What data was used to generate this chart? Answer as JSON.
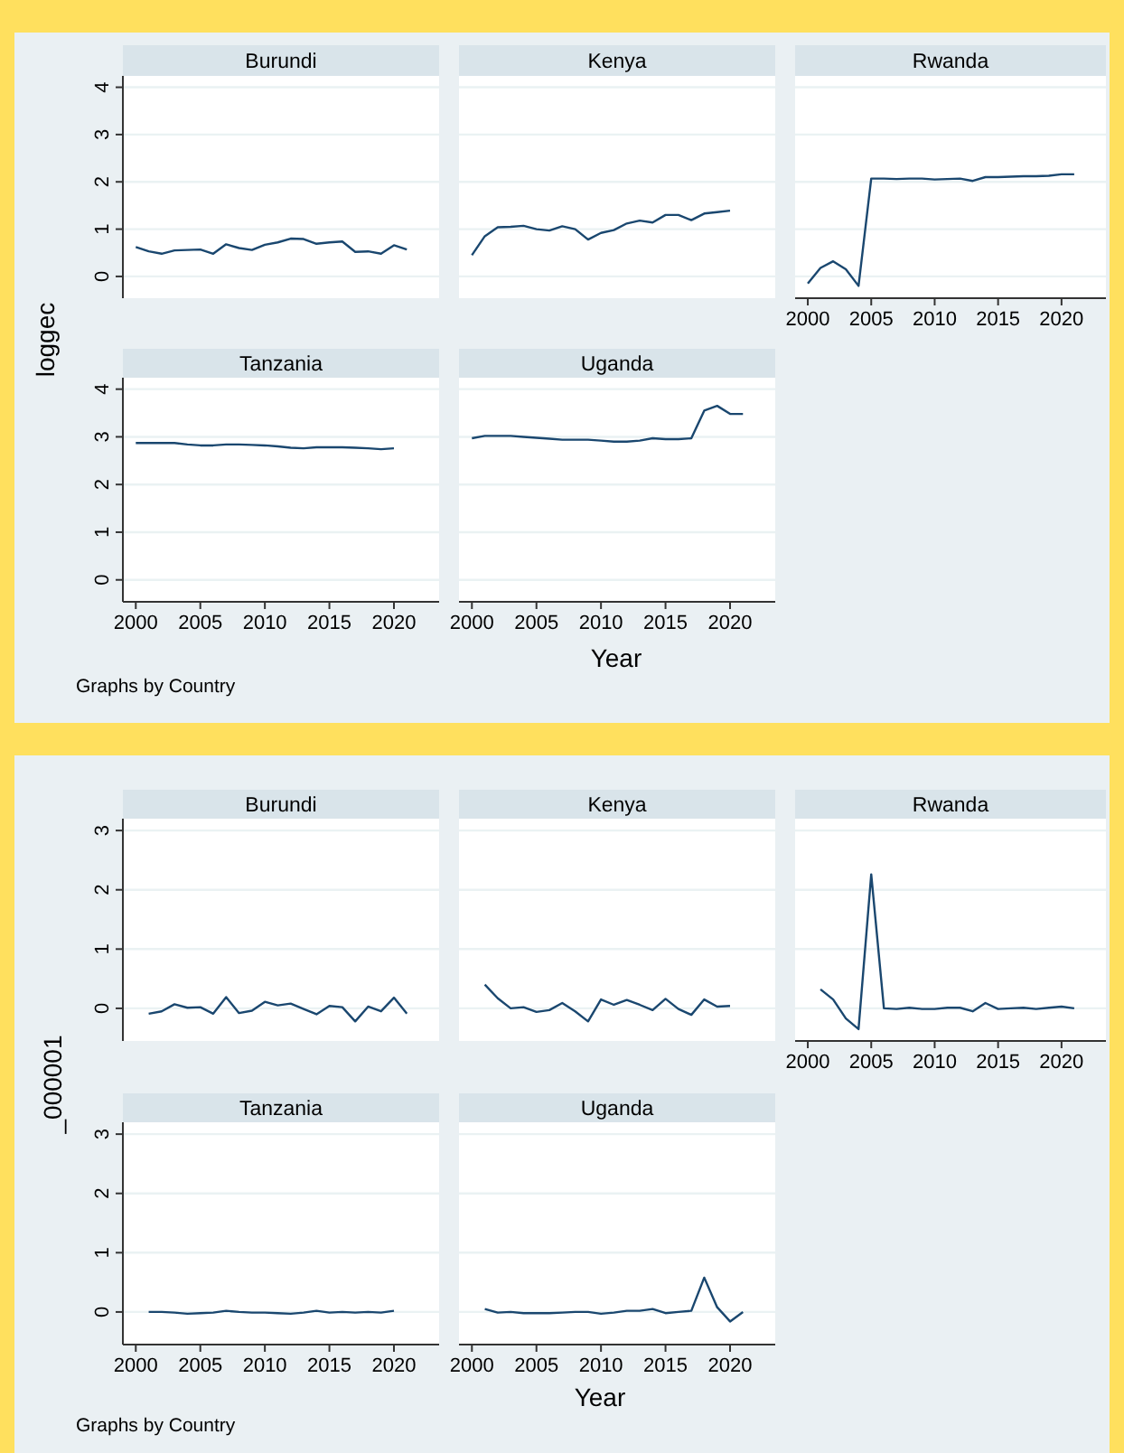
{
  "chart_data": [
    {
      "type": "line",
      "title": "Burundi",
      "ylabel": "loggec",
      "x": [
        2000,
        2001,
        2002,
        2003,
        2004,
        2005,
        2006,
        2007,
        2008,
        2009,
        2010,
        2011,
        2012,
        2013,
        2014,
        2015,
        2016,
        2017,
        2018,
        2019,
        2020,
        2021
      ],
      "series": [
        {
          "color": "#1a476f",
          "values": [
            0.62,
            0.53,
            0.48,
            0.55,
            0.56,
            0.57,
            0.48,
            0.68,
            0.6,
            0.56,
            0.67,
            0.72,
            0.8,
            0.79,
            0.69,
            0.72,
            0.74,
            0.52,
            0.53,
            0.48,
            0.66,
            0.57
          ]
        }
      ],
      "xlim": [
        1999,
        2023.5
      ],
      "ylim": [
        -0.46,
        4.24
      ],
      "yticks": [
        0,
        1,
        2,
        3,
        4
      ],
      "grid": "y",
      "tick_labels": "y"
    },
    {
      "type": "line",
      "title": "Kenya",
      "x": [
        2000,
        2001,
        2002,
        2003,
        2004,
        2005,
        2006,
        2007,
        2008,
        2009,
        2010,
        2011,
        2012,
        2013,
        2014,
        2015,
        2016,
        2017,
        2018,
        2019,
        2020
      ],
      "series": [
        {
          "color": "#1a476f",
          "values": [
            0.45,
            0.85,
            1.04,
            1.05,
            1.07,
            1.0,
            0.97,
            1.06,
            1.0,
            0.78,
            0.92,
            0.98,
            1.12,
            1.18,
            1.14,
            1.3,
            1.3,
            1.19,
            1.33,
            1.36,
            1.39
          ]
        }
      ],
      "xlim": [
        1999,
        2023.5
      ],
      "ylim": [
        -0.46,
        4.24
      ],
      "yticks": [
        0,
        1,
        2,
        3,
        4
      ],
      "grid": "y",
      "tick_labels": false
    },
    {
      "type": "line",
      "title": "Rwanda",
      "x": [
        2000,
        2001,
        2002,
        2003,
        2004,
        2005,
        2006,
        2007,
        2008,
        2009,
        2010,
        2011,
        2012,
        2013,
        2014,
        2015,
        2016,
        2017,
        2018,
        2019,
        2020,
        2021
      ],
      "series": [
        {
          "color": "#1a476f",
          "values": [
            -0.15,
            0.18,
            0.32,
            0.15,
            -0.2,
            2.07,
            2.07,
            2.06,
            2.07,
            2.07,
            2.05,
            2.06,
            2.07,
            2.02,
            2.1,
            2.1,
            2.11,
            2.12,
            2.12,
            2.13,
            2.16,
            2.16
          ]
        }
      ],
      "xlim": [
        1999,
        2023.5
      ],
      "ylim": [
        -0.46,
        4.24
      ],
      "xticks": [
        2000,
        2005,
        2010,
        2015,
        2020
      ],
      "yticks": [
        0,
        1,
        2,
        3,
        4
      ],
      "grid": "y",
      "tick_labels": "x"
    },
    {
      "type": "line",
      "title": "Tanzania",
      "annotations": [
        "Graphs by Country"
      ],
      "x": [
        2000,
        2001,
        2002,
        2003,
        2004,
        2005,
        2006,
        2007,
        2008,
        2009,
        2010,
        2011,
        2012,
        2013,
        2014,
        2015,
        2016,
        2017,
        2018,
        2019,
        2020
      ],
      "series": [
        {
          "color": "#1a476f",
          "values": [
            2.87,
            2.87,
            2.87,
            2.87,
            2.84,
            2.82,
            2.82,
            2.84,
            2.84,
            2.83,
            2.82,
            2.8,
            2.77,
            2.76,
            2.78,
            2.78,
            2.78,
            2.77,
            2.76,
            2.74,
            2.76
          ]
        }
      ],
      "xlim": [
        1999,
        2023.5
      ],
      "ylim": [
        -0.46,
        4.24
      ],
      "xticks": [
        2000,
        2005,
        2010,
        2015,
        2020
      ],
      "yticks": [
        0,
        1,
        2,
        3,
        4
      ],
      "grid": "y"
    },
    {
      "type": "line",
      "title": "Uganda",
      "xlabel": "Year",
      "x": [
        2000,
        2001,
        2002,
        2003,
        2004,
        2005,
        2006,
        2007,
        2008,
        2009,
        2010,
        2011,
        2012,
        2013,
        2014,
        2015,
        2016,
        2017,
        2018,
        2019,
        2020,
        2021
      ],
      "series": [
        {
          "color": "#1a476f",
          "values": [
            2.97,
            3.02,
            3.02,
            3.02,
            3.0,
            2.98,
            2.96,
            2.94,
            2.94,
            2.94,
            2.92,
            2.9,
            2.9,
            2.92,
            2.97,
            2.95,
            2.95,
            2.97,
            3.55,
            3.65,
            3.48,
            3.48
          ]
        }
      ],
      "xlim": [
        1999,
        2023.5
      ],
      "ylim": [
        -0.46,
        4.24
      ],
      "xticks": [
        2000,
        2005,
        2010,
        2015,
        2020
      ],
      "yticks": [
        0,
        1,
        2,
        3,
        4
      ],
      "grid": "y",
      "tick_labels": "x"
    },
    {
      "type": "line",
      "title": "Burundi",
      "ylabel": "_000001",
      "x": [
        2001,
        2002,
        2003,
        2004,
        2005,
        2006,
        2007,
        2008,
        2009,
        2010,
        2011,
        2012,
        2013,
        2014,
        2015,
        2016,
        2017,
        2018,
        2019,
        2020,
        2021
      ],
      "series": [
        {
          "color": "#1a476f",
          "values": [
            -0.09,
            -0.05,
            0.07,
            0.01,
            0.02,
            -0.09,
            0.19,
            -0.08,
            -0.04,
            0.11,
            0.05,
            0.08,
            -0.01,
            -0.1,
            0.04,
            0.02,
            -0.22,
            0.03,
            -0.05,
            0.18,
            -0.09
          ]
        }
      ],
      "xlim": [
        1999,
        2023.5
      ],
      "ylim": [
        -0.55,
        3.2
      ],
      "yticks": [
        0,
        1,
        2,
        3
      ],
      "grid": "y",
      "tick_labels": "y"
    },
    {
      "type": "line",
      "title": "Kenya",
      "x": [
        2001,
        2002,
        2003,
        2004,
        2005,
        2006,
        2007,
        2008,
        2009,
        2010,
        2011,
        2012,
        2013,
        2014,
        2015,
        2016,
        2017,
        2018,
        2019,
        2020
      ],
      "series": [
        {
          "color": "#1a476f",
          "values": [
            0.4,
            0.17,
            0.0,
            0.02,
            -0.06,
            -0.03,
            0.09,
            -0.05,
            -0.22,
            0.15,
            0.06,
            0.14,
            0.06,
            -0.03,
            0.16,
            -0.01,
            -0.11,
            0.15,
            0.03,
            0.04
          ]
        }
      ],
      "xlim": [
        1999,
        2023.5
      ],
      "ylim": [
        -0.55,
        3.2
      ],
      "yticks": [
        0,
        1,
        2,
        3
      ],
      "grid": "y",
      "tick_labels": false
    },
    {
      "type": "line",
      "title": "Rwanda",
      "x": [
        2001,
        2002,
        2003,
        2004,
        2005,
        2006,
        2007,
        2008,
        2009,
        2010,
        2011,
        2012,
        2013,
        2014,
        2015,
        2016,
        2017,
        2018,
        2019,
        2020,
        2021
      ],
      "series": [
        {
          "color": "#1a476f",
          "values": [
            0.32,
            0.15,
            -0.17,
            -0.35,
            2.26,
            0.0,
            -0.01,
            0.01,
            -0.01,
            -0.01,
            0.01,
            0.01,
            -0.05,
            0.09,
            -0.01,
            0.0,
            0.01,
            -0.01,
            0.01,
            0.03,
            0.0
          ]
        }
      ],
      "xlim": [
        1999,
        2023.5
      ],
      "ylim": [
        -0.55,
        3.2
      ],
      "xticks": [
        2000,
        2005,
        2010,
        2015,
        2020
      ],
      "yticks": [
        0,
        1,
        2,
        3
      ],
      "grid": "y",
      "tick_labels": "x"
    },
    {
      "type": "line",
      "title": "Tanzania",
      "annotations": [
        "Graphs by Country"
      ],
      "x": [
        2001,
        2002,
        2003,
        2004,
        2005,
        2006,
        2007,
        2008,
        2009,
        2010,
        2011,
        2012,
        2013,
        2014,
        2015,
        2016,
        2017,
        2018,
        2019,
        2020
      ],
      "series": [
        {
          "color": "#1a476f",
          "values": [
            0.0,
            0.0,
            -0.01,
            -0.03,
            -0.02,
            -0.01,
            0.02,
            0.0,
            -0.01,
            -0.01,
            -0.02,
            -0.03,
            -0.01,
            0.02,
            -0.01,
            0.0,
            -0.01,
            0.0,
            -0.01,
            0.02
          ]
        }
      ],
      "xlim": [
        1999,
        2023.5
      ],
      "ylim": [
        -0.55,
        3.2
      ],
      "xticks": [
        2000,
        2005,
        2010,
        2015,
        2020
      ],
      "yticks": [
        0,
        1,
        2,
        3
      ],
      "grid": "y"
    },
    {
      "type": "line",
      "title": "Uganda",
      "xlabel": "Year",
      "x": [
        2001,
        2002,
        2003,
        2004,
        2005,
        2006,
        2007,
        2008,
        2009,
        2010,
        2011,
        2012,
        2013,
        2014,
        2015,
        2016,
        2017,
        2018,
        2019,
        2020,
        2021
      ],
      "series": [
        {
          "color": "#1a476f",
          "values": [
            0.05,
            -0.01,
            0.0,
            -0.02,
            -0.02,
            -0.02,
            -0.01,
            0.0,
            0.0,
            -0.03,
            -0.01,
            0.02,
            0.02,
            0.05,
            -0.02,
            0.0,
            0.02,
            0.58,
            0.08,
            -0.16,
            0.0
          ]
        }
      ],
      "xlim": [
        1999,
        2023.5
      ],
      "ylim": [
        -0.55,
        3.2
      ],
      "xticks": [
        2000,
        2005,
        2010,
        2015,
        2020
      ],
      "yticks": [
        0,
        1,
        2,
        3
      ],
      "grid": "y",
      "tick_labels": "x"
    }
  ]
}
